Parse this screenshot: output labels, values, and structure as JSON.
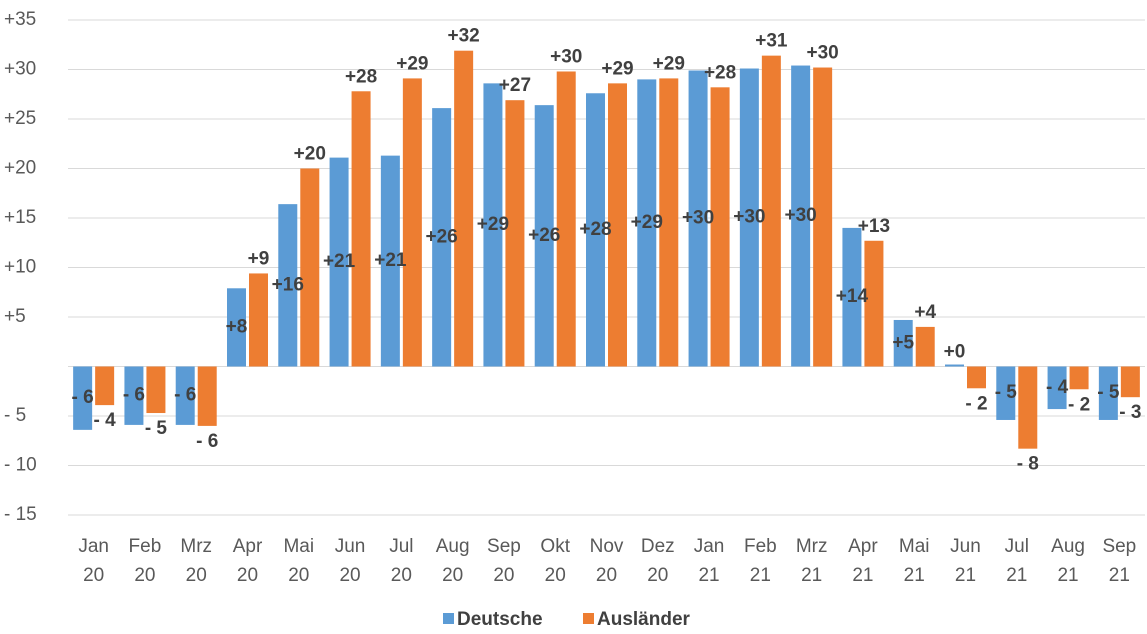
{
  "chart_data": {
    "type": "bar",
    "categories": [
      "Jan 20",
      "Feb 20",
      "Mrz 20",
      "Apr 20",
      "Mai 20",
      "Jun 20",
      "Jul 20",
      "Aug 20",
      "Sep 20",
      "Okt 20",
      "Nov 20",
      "Dez 20",
      "Jan 21",
      "Feb 21",
      "Mrz 21",
      "Apr 21",
      "Mai 21",
      "Jun 21",
      "Jul 21",
      "Aug 21",
      "Sep 21"
    ],
    "series": [
      {
        "name": "Deutsche",
        "color": "#5b9bd5",
        "values": [
          -6.4,
          -5.9,
          -5.9,
          7.9,
          16.4,
          21.1,
          21.3,
          26.1,
          28.6,
          26.4,
          27.6,
          29.0,
          29.9,
          30.1,
          30.4,
          14.0,
          4.7,
          0.2,
          -5.4,
          -4.3,
          -5.4
        ],
        "value_labels": [
          "- 6",
          "- 6",
          "- 6",
          "+8",
          "+16",
          "+21",
          "+21",
          "+26",
          "+29",
          "+26",
          "+28",
          "+29",
          "+30",
          "+30",
          "+30",
          "+14",
          "+5",
          "+0",
          "- 5",
          "- 4",
          "- 5"
        ]
      },
      {
        "name": "Ausländer",
        "color": "#ed7d31",
        "values": [
          -3.9,
          -4.7,
          -6.0,
          9.4,
          20.0,
          27.8,
          29.1,
          31.9,
          26.9,
          29.8,
          28.6,
          29.1,
          28.2,
          31.4,
          30.2,
          12.7,
          4.0,
          -2.2,
          -8.3,
          -2.3,
          -3.1
        ],
        "value_labels": [
          "- 4",
          "- 5",
          "- 6",
          "+9",
          "+20",
          "+28",
          "+29",
          "+32",
          "+27",
          "+30",
          "+29",
          "+29",
          "+28",
          "+31",
          "+30",
          "+13",
          "+4",
          "- 2",
          "- 8",
          "- 2",
          "- 3"
        ]
      }
    ],
    "ylim": [
      -15,
      35
    ],
    "yticks": [
      {
        "value": 35,
        "label": "+35"
      },
      {
        "value": 30,
        "label": "+30"
      },
      {
        "value": 25,
        "label": "+25"
      },
      {
        "value": 20,
        "label": "+20"
      },
      {
        "value": 15,
        "label": "+15"
      },
      {
        "value": 10,
        "label": "+10"
      },
      {
        "value": 5,
        "label": "+5"
      },
      {
        "value": -5,
        "label": "- 5"
      },
      {
        "value": -10,
        "label": "- 10"
      },
      {
        "value": -15,
        "label": "- 15"
      }
    ],
    "grid": true
  }
}
